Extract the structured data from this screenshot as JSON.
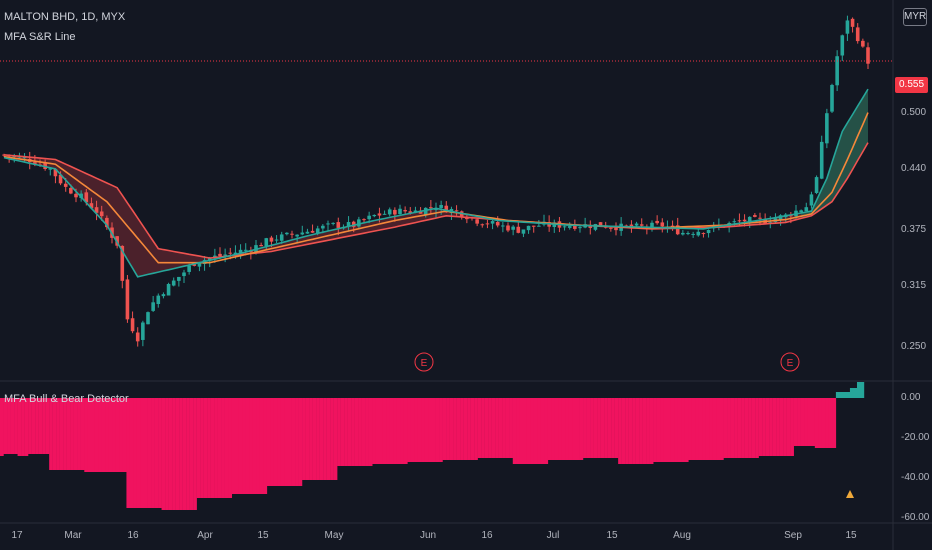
{
  "header": {
    "symbol": "MALTON BHD, 1D, MYX",
    "indicator": "MFA S&R Line",
    "currency": "MYR",
    "last_price": "0.555"
  },
  "lower_panel": {
    "title": "MFA Bull & Bear Detector"
  },
  "events": [
    {
      "label": "E",
      "date": "Jun 1"
    },
    {
      "label": "E",
      "date": "Sep 1"
    }
  ],
  "colors": {
    "up": "#26a69a",
    "down": "#ef5350",
    "hist_neg": "#f0135f",
    "hist_pos": "#26a69a",
    "band_green": "#1b5e4f",
    "band_red": "#7a2a33",
    "ema_fast": "#26a69a",
    "ema_mid": "#f5883a",
    "ema_slow": "#ef5350",
    "signal": "#f0a93a"
  },
  "chart_data": [
    {
      "type": "candlestick",
      "title": "MALTON BHD, 1D, MYX",
      "ylabel": "MYR",
      "ylim": [
        0.215,
        0.62
      ],
      "yticks": [
        "0.250",
        "0.315",
        "0.375",
        "0.440",
        "0.500"
      ],
      "xticks": [
        "17",
        "Mar",
        "16",
        "Apr",
        "15",
        "May",
        "Jun",
        "16",
        "Jul",
        "15",
        "Aug",
        "Sep",
        "15"
      ],
      "series": [
        {
          "name": "close",
          "points": [
            [
              0,
              0.455
            ],
            [
              5,
              0.45
            ],
            [
              9,
              0.44
            ],
            [
              12,
              0.42
            ],
            [
              15,
              0.41
            ],
            [
              18,
              0.395
            ],
            [
              22,
              0.36
            ],
            [
              24,
              0.28
            ],
            [
              26,
              0.26
            ],
            [
              28,
              0.29
            ],
            [
              30,
              0.305
            ],
            [
              33,
              0.32
            ],
            [
              37,
              0.34
            ],
            [
              40,
              0.345
            ],
            [
              44,
              0.35
            ],
            [
              48,
              0.355
            ],
            [
              52,
              0.365
            ],
            [
              56,
              0.37
            ],
            [
              60,
              0.375
            ],
            [
              64,
              0.38
            ],
            [
              68,
              0.38
            ],
            [
              72,
              0.39
            ],
            [
              76,
              0.395
            ],
            [
              80,
              0.395
            ],
            [
              84,
              0.4
            ],
            [
              88,
              0.395
            ],
            [
              92,
              0.385
            ],
            [
              96,
              0.38
            ],
            [
              100,
              0.375
            ],
            [
              104,
              0.38
            ],
            [
              108,
              0.38
            ],
            [
              112,
              0.38
            ],
            [
              116,
              0.38
            ],
            [
              120,
              0.378
            ],
            [
              124,
              0.378
            ],
            [
              128,
              0.38
            ],
            [
              132,
              0.372
            ],
            [
              136,
              0.375
            ],
            [
              140,
              0.38
            ],
            [
              144,
              0.385
            ],
            [
              148,
              0.385
            ],
            [
              152,
              0.39
            ],
            [
              156,
              0.4
            ],
            [
              158,
              0.43
            ],
            [
              160,
              0.5
            ],
            [
              162,
              0.56
            ],
            [
              164,
              0.6
            ],
            [
              166,
              0.58
            ],
            [
              168,
              0.555
            ]
          ]
        },
        {
          "name": "EMA fast",
          "points": [
            [
              0,
              0.452
            ],
            [
              10,
              0.44
            ],
            [
              20,
              0.38
            ],
            [
              26,
              0.325
            ],
            [
              34,
              0.335
            ],
            [
              46,
              0.35
            ],
            [
              60,
              0.37
            ],
            [
              72,
              0.385
            ],
            [
              84,
              0.398
            ],
            [
              96,
              0.385
            ],
            [
              110,
              0.38
            ],
            [
              124,
              0.378
            ],
            [
              136,
              0.376
            ],
            [
              150,
              0.388
            ],
            [
              157,
              0.395
            ],
            [
              160,
              0.43
            ],
            [
              163,
              0.48
            ],
            [
              168,
              0.525
            ]
          ]
        },
        {
          "name": "EMA mid",
          "points": [
            [
              0,
              0.453
            ],
            [
              10,
              0.445
            ],
            [
              20,
              0.405
            ],
            [
              30,
              0.34
            ],
            [
              40,
              0.34
            ],
            [
              52,
              0.355
            ],
            [
              64,
              0.37
            ],
            [
              76,
              0.385
            ],
            [
              86,
              0.395
            ],
            [
              98,
              0.385
            ],
            [
              112,
              0.38
            ],
            [
              126,
              0.377
            ],
            [
              140,
              0.38
            ],
            [
              152,
              0.386
            ],
            [
              157,
              0.392
            ],
            [
              161,
              0.415
            ],
            [
              164,
              0.45
            ],
            [
              168,
              0.5
            ]
          ]
        },
        {
          "name": "EMA slow",
          "points": [
            [
              0,
              0.455
            ],
            [
              10,
              0.45
            ],
            [
              22,
              0.42
            ],
            [
              30,
              0.355
            ],
            [
              40,
              0.345
            ],
            [
              52,
              0.352
            ],
            [
              64,
              0.365
            ],
            [
              76,
              0.378
            ],
            [
              86,
              0.39
            ],
            [
              98,
              0.385
            ],
            [
              112,
              0.38
            ],
            [
              126,
              0.376
            ],
            [
              140,
              0.378
            ],
            [
              152,
              0.383
            ],
            [
              157,
              0.39
            ],
            [
              161,
              0.405
            ],
            [
              164,
              0.43
            ],
            [
              168,
              0.468
            ]
          ]
        }
      ]
    },
    {
      "type": "bar",
      "title": "MFA Bull & Bear Detector",
      "ylim": [
        -62,
        8
      ],
      "yticks": [
        "0.00",
        "-20.00",
        "-40.00",
        "-60.00"
      ],
      "values": [
        -29,
        -28,
        -28,
        -28,
        -28,
        -29,
        -29,
        -29,
        -28,
        -28,
        -28,
        -28,
        -28,
        -28,
        -36,
        -36,
        -36,
        -36,
        -36,
        -36,
        -36,
        -36,
        -36,
        -36,
        -37,
        -37,
        -37,
        -37,
        -37,
        -37,
        -37,
        -37,
        -37,
        -37,
        -37,
        -37,
        -55,
        -55,
        -55,
        -55,
        -55,
        -55,
        -55,
        -55,
        -55,
        -55,
        -56,
        -56,
        -56,
        -56,
        -56,
        -56,
        -56,
        -56,
        -56,
        -56,
        -50,
        -50,
        -50,
        -50,
        -50,
        -50,
        -50,
        -50,
        -50,
        -50,
        -48,
        -48,
        -48,
        -48,
        -48,
        -48,
        -48,
        -48,
        -48,
        -48,
        -44,
        -44,
        -44,
        -44,
        -44,
        -44,
        -44,
        -44,
        -44,
        -44,
        -41,
        -41,
        -41,
        -41,
        -41,
        -41,
        -41,
        -41,
        -41,
        -41,
        -34,
        -34,
        -34,
        -34,
        -34,
        -34,
        -34,
        -34,
        -34,
        -34,
        -33,
        -33,
        -33,
        -33,
        -33,
        -33,
        -33,
        -33,
        -33,
        -33,
        -32,
        -32,
        -32,
        -32,
        -32,
        -32,
        -32,
        -32,
        -32,
        -32,
        -31,
        -31,
        -31,
        -31,
        -31,
        -31,
        -31,
        -31,
        -31,
        -31,
        -30,
        -30,
        -30,
        -30,
        -30,
        -30,
        -30,
        -30,
        -30,
        -30,
        -33,
        -33,
        -33,
        -33,
        -33,
        -33,
        -33,
        -33,
        -33,
        -33,
        -31,
        -31,
        -31,
        -31,
        -31,
        -31,
        -31,
        -31,
        -31,
        -31,
        -30,
        -30,
        -30,
        -30,
        -30,
        -30,
        -30,
        -30,
        -30,
        -30,
        -33,
        -33,
        -33,
        -33,
        -33,
        -33,
        -33,
        -33,
        -33,
        -33,
        -32,
        -32,
        -32,
        -32,
        -32,
        -32,
        -32,
        -32,
        -32,
        -32,
        -31,
        -31,
        -31,
        -31,
        -31,
        -31,
        -31,
        -31,
        -31,
        -31,
        -30,
        -30,
        -30,
        -30,
        -30,
        -30,
        -30,
        -30,
        -30,
        -30,
        -29,
        -29,
        -29,
        -29,
        -29,
        -29,
        -29,
        -29,
        -29,
        -29,
        -24,
        -24,
        -24,
        -24,
        -24,
        -24,
        -25,
        -25,
        -25,
        -25,
        -25,
        -25,
        3,
        3,
        3,
        3,
        5,
        5,
        8,
        8
      ]
    }
  ]
}
